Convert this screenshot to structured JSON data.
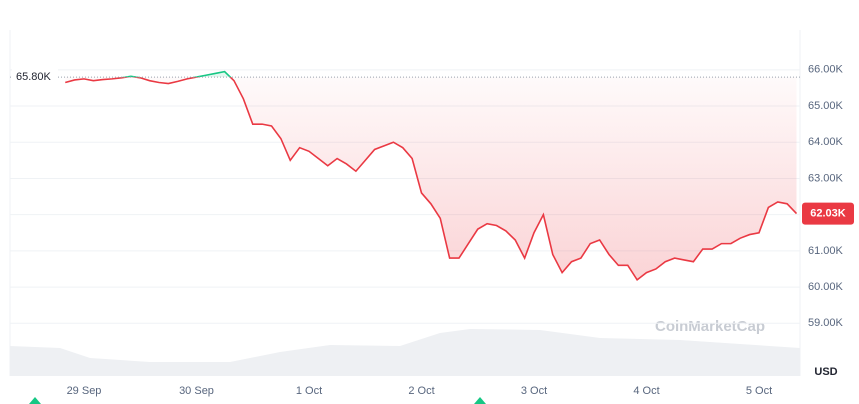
{
  "chart_data": {
    "type": "line",
    "currency": "USD",
    "watermark": "CoinMarketCap",
    "categories": [
      null,
      null,
      "29 Sep",
      null,
      null,
      null,
      null,
      null,
      null,
      null,
      null,
      null,
      null,
      null,
      "30 Sep",
      null,
      null,
      null,
      null,
      null,
      null,
      null,
      null,
      null,
      null,
      null,
      "1 Oct",
      null,
      null,
      null,
      null,
      null,
      null,
      null,
      null,
      null,
      null,
      null,
      "2 Oct",
      null,
      null,
      null,
      null,
      null,
      null,
      null,
      null,
      null,
      null,
      null,
      "3 Oct",
      null,
      null,
      null,
      null,
      null,
      null,
      null,
      null,
      null,
      null,
      null,
      "4 Oct",
      null,
      null,
      null,
      null,
      null,
      null,
      null,
      null,
      null,
      null,
      null,
      "5 Oct",
      null,
      null,
      null,
      null
    ],
    "values": [
      65.65,
      65.72,
      65.75,
      65.7,
      65.73,
      65.75,
      65.78,
      65.82,
      65.78,
      65.7,
      65.65,
      65.62,
      65.68,
      65.75,
      65.8,
      65.85,
      65.9,
      65.95,
      65.7,
      65.2,
      64.5,
      64.5,
      64.45,
      64.1,
      63.5,
      63.85,
      63.75,
      63.55,
      63.35,
      63.55,
      63.4,
      63.2,
      63.5,
      63.8,
      63.9,
      64.0,
      63.85,
      63.55,
      62.6,
      62.3,
      61.9,
      60.8,
      60.8,
      61.2,
      61.6,
      61.75,
      61.7,
      61.55,
      61.3,
      60.8,
      61.5,
      62.0,
      60.9,
      60.4,
      60.7,
      60.8,
      61.2,
      61.3,
      60.9,
      60.6,
      60.6,
      60.2,
      60.4,
      60.5,
      60.7,
      60.8,
      60.75,
      60.7,
      61.05,
      61.05,
      61.2,
      61.2,
      61.35,
      61.45,
      61.5,
      62.2,
      62.35,
      62.3,
      62.03
    ],
    "up_color": "#16c784",
    "down_color": "#ea3943",
    "reference": {
      "value": 65.8,
      "label": "65.80K"
    },
    "current": {
      "value": 62.03,
      "label": "62.03K"
    },
    "ylim": [
      58.4,
      67.1
    ],
    "yticks": [
      {
        "value": 59,
        "label": "59.00K"
      },
      {
        "value": 60,
        "label": "60.00K"
      },
      {
        "value": 61,
        "label": "61.00K"
      },
      {
        "value": 62,
        "label": "62.00K"
      },
      {
        "value": 63,
        "label": "63.00K"
      },
      {
        "value": 64,
        "label": "64.00K"
      },
      {
        "value": 65,
        "label": "65.00K"
      },
      {
        "value": 66,
        "label": "66.00K"
      }
    ],
    "grid": true
  }
}
